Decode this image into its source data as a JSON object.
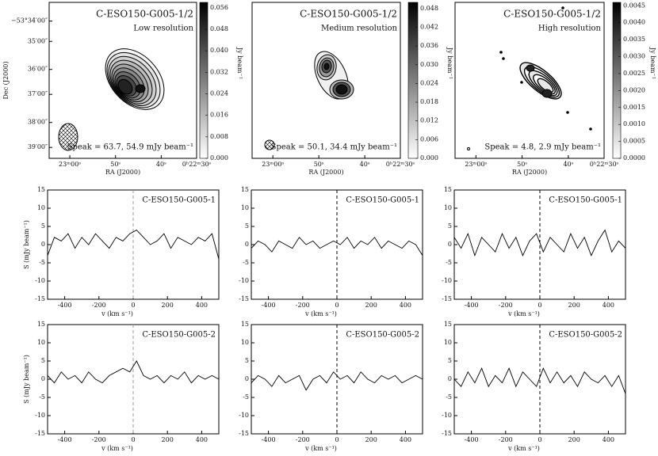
{
  "chart_data": [
    {
      "type": "image",
      "title": "C-ESO150-G005-1/2",
      "subtitle": "Low resolution",
      "annotation": "Speak = 63.7, 54.9 mJy beam⁻¹",
      "xlabel": "RA (J2000)",
      "ylabel": "Dec (J2000)",
      "xtick_labels": [
        "23ᵐ00ˢ",
        "50ˢ",
        "40ˢ",
        "0ʰ22ᵐ30ˢ"
      ],
      "ytick_labels": [
        "−53°34′00″",
        "35′00″",
        "36′00″",
        "37′00″",
        "38′00″",
        "39′00″"
      ],
      "colorbar_label": "Jy beam⁻¹",
      "clim": [
        0,
        0.058
      ],
      "cticks": [
        {
          "value": 0,
          "label": "0.000"
        },
        {
          "value": 0.008,
          "label": "0.008"
        },
        {
          "value": 0.016,
          "label": "0.016"
        },
        {
          "value": 0.024,
          "label": "0.024"
        },
        {
          "value": 0.032,
          "label": "0.032"
        },
        {
          "value": 0.04,
          "label": "0.040"
        },
        {
          "value": 0.048,
          "label": "0.048"
        },
        {
          "value": 0.056,
          "label": "0.056"
        }
      ]
    },
    {
      "type": "image",
      "title": "C-ESO150-G005-1/2",
      "subtitle": "Medium resolution",
      "annotation": "Speak = 50.1, 34.4 mJy beam⁻¹",
      "xlabel": "RA (J2000)",
      "xtick_labels": [
        "23ᵐ00ˢ",
        "50ˢ",
        "40ˢ",
        "0ʰ22ᵐ30ˢ"
      ],
      "colorbar_label": "Jy beam⁻¹",
      "clim": [
        0,
        0.05
      ],
      "cticks": [
        {
          "value": 0,
          "label": "0.000"
        },
        {
          "value": 0.006,
          "label": "0.006"
        },
        {
          "value": 0.012,
          "label": "0.012"
        },
        {
          "value": 0.018,
          "label": "0.018"
        },
        {
          "value": 0.024,
          "label": "0.024"
        },
        {
          "value": 0.03,
          "label": "0.030"
        },
        {
          "value": 0.036,
          "label": "0.036"
        },
        {
          "value": 0.042,
          "label": "0.042"
        },
        {
          "value": 0.048,
          "label": "0.048"
        }
      ]
    },
    {
      "type": "image",
      "title": "C-ESO150-G005-1/2",
      "subtitle": "High resolution",
      "annotation": "Speak = 4.8, 2.9 mJy beam⁻¹",
      "xlabel": "RA (J2000)",
      "xtick_labels": [
        "23ᵐ00ˢ",
        "50ˢ",
        "40ˢ",
        "0ʰ22ᵐ30ˢ"
      ],
      "colorbar_label": "Jy beam⁻¹",
      "clim": [
        0,
        0.0046
      ],
      "cticks": [
        {
          "value": 0,
          "label": "0.0000"
        },
        {
          "value": 0.0005,
          "label": "0.0005"
        },
        {
          "value": 0.001,
          "label": "0.0010"
        },
        {
          "value": 0.0015,
          "label": "0.0015"
        },
        {
          "value": 0.002,
          "label": "0.0020"
        },
        {
          "value": 0.0025,
          "label": "0.0025"
        },
        {
          "value": 0.003,
          "label": "0.0030"
        },
        {
          "value": 0.0035,
          "label": "0.0035"
        },
        {
          "value": 0.004,
          "label": "0.0040"
        },
        {
          "value": 0.0045,
          "label": "0.0045"
        }
      ]
    },
    {
      "type": "line",
      "title": "C-ESO150-G005-1",
      "xlabel": "v (km s⁻¹)",
      "ylabel": "S (mJy beam⁻¹)",
      "x": [
        -500,
        -460,
        -420,
        -380,
        -340,
        -300,
        -260,
        -220,
        -180,
        -140,
        -100,
        -60,
        -20,
        20,
        60,
        100,
        140,
        180,
        220,
        260,
        300,
        340,
        380,
        420,
        460,
        500
      ],
      "values": [
        -3,
        2,
        1,
        3,
        -1,
        2,
        0,
        3,
        1,
        -1,
        2,
        1,
        3,
        4,
        2,
        0,
        1,
        3,
        -1,
        2,
        1,
        0,
        2,
        1,
        3,
        -4
      ],
      "xlim": [
        -500,
        500
      ],
      "ylim": [
        -15,
        15
      ],
      "xticks": [
        -400,
        -200,
        0,
        200,
        400
      ],
      "yticks": [
        -15,
        -10,
        -5,
        0,
        5,
        10,
        15
      ],
      "vline": 0,
      "vline_color": "#999999",
      "color": "#000000"
    },
    {
      "type": "line",
      "title": "C-ESO150-G005-1",
      "xlabel": "v (km s⁻¹)",
      "x": [
        -500,
        -460,
        -420,
        -380,
        -340,
        -300,
        -260,
        -220,
        -180,
        -140,
        -100,
        -60,
        -20,
        20,
        60,
        100,
        140,
        180,
        220,
        260,
        300,
        340,
        380,
        420,
        460,
        500
      ],
      "values": [
        -1,
        1,
        0,
        -2,
        1,
        0,
        -1,
        2,
        0,
        1,
        -1,
        0,
        1,
        0,
        2,
        -1,
        1,
        0,
        2,
        -1,
        1,
        0,
        -1,
        1,
        0,
        -3
      ],
      "xlim": [
        -500,
        500
      ],
      "ylim": [
        -15,
        15
      ],
      "xticks": [
        -400,
        -200,
        0,
        200,
        400
      ],
      "yticks": [
        -15,
        -10,
        -5,
        0,
        5,
        10,
        15
      ],
      "vline": 0,
      "vline_color": "#000000",
      "color": "#000000"
    },
    {
      "type": "line",
      "title": "C-ESO150-G005-1",
      "xlabel": "v (km s⁻¹)",
      "x": [
        -500,
        -460,
        -420,
        -380,
        -340,
        -300,
        -260,
        -220,
        -180,
        -140,
        -100,
        -60,
        -20,
        20,
        60,
        100,
        140,
        180,
        220,
        260,
        300,
        340,
        380,
        420,
        460,
        500
      ],
      "values": [
        2,
        -1,
        3,
        -3,
        2,
        0,
        -2,
        3,
        -1,
        2,
        -3,
        1,
        3,
        -2,
        2,
        0,
        -2,
        3,
        -1,
        2,
        -3,
        1,
        4,
        -2,
        1,
        -1
      ],
      "xlim": [
        -500,
        500
      ],
      "ylim": [
        -15,
        15
      ],
      "xticks": [
        -400,
        -200,
        0,
        200,
        400
      ],
      "yticks": [
        -15,
        -10,
        -5,
        0,
        5,
        10,
        15
      ],
      "vline": 0,
      "vline_color": "#000000",
      "color": "#000000"
    },
    {
      "type": "line",
      "title": "C-ESO150-G005-2",
      "xlabel": "v (km s⁻¹)",
      "ylabel": "S (mJy beam⁻¹)",
      "x": [
        -500,
        -460,
        -420,
        -380,
        -340,
        -300,
        -260,
        -220,
        -180,
        -140,
        -100,
        -60,
        -20,
        20,
        60,
        100,
        140,
        180,
        220,
        260,
        300,
        340,
        380,
        420,
        460,
        500
      ],
      "values": [
        1,
        -1,
        2,
        0,
        1,
        -1,
        2,
        0,
        -1,
        1,
        2,
        3,
        2,
        5,
        1,
        0,
        1,
        -1,
        1,
        0,
        2,
        -1,
        1,
        0,
        1,
        0
      ],
      "xlim": [
        -500,
        500
      ],
      "ylim": [
        -15,
        15
      ],
      "xticks": [
        -400,
        -200,
        0,
        200,
        400
      ],
      "yticks": [
        -15,
        -10,
        -5,
        0,
        5,
        10,
        15
      ],
      "vline": 0,
      "vline_color": "#999999",
      "color": "#000000"
    },
    {
      "type": "line",
      "title": "C-ESO150-G005-2",
      "xlabel": "v (km s⁻¹)",
      "x": [
        -500,
        -460,
        -420,
        -380,
        -340,
        -300,
        -260,
        -220,
        -180,
        -140,
        -100,
        -60,
        -20,
        20,
        60,
        100,
        140,
        180,
        220,
        260,
        300,
        340,
        380,
        420,
        460,
        500
      ],
      "values": [
        -1,
        1,
        0,
        -2,
        1,
        -1,
        0,
        1,
        -3,
        0,
        1,
        -1,
        2,
        0,
        1,
        -1,
        2,
        0,
        -1,
        1,
        0,
        1,
        -1,
        0,
        1,
        0
      ],
      "xlim": [
        -500,
        500
      ],
      "ylim": [
        -15,
        15
      ],
      "xticks": [
        -400,
        -200,
        0,
        200,
        400
      ],
      "yticks": [
        -15,
        -10,
        -5,
        0,
        5,
        10,
        15
      ],
      "vline": 0,
      "vline_color": "#000000",
      "color": "#000000"
    },
    {
      "type": "line",
      "title": "C-ESO150-G005-2",
      "xlabel": "v (km s⁻¹)",
      "x": [
        -500,
        -460,
        -420,
        -380,
        -340,
        -300,
        -260,
        -220,
        -180,
        -140,
        -100,
        -60,
        -20,
        20,
        60,
        100,
        140,
        180,
        220,
        260,
        300,
        340,
        380,
        420,
        460,
        500
      ],
      "values": [
        0,
        -2,
        2,
        -1,
        3,
        -2,
        1,
        -1,
        3,
        -2,
        2,
        0,
        -2,
        3,
        -1,
        2,
        -1,
        1,
        -2,
        2,
        0,
        -1,
        1,
        -2,
        1,
        -4
      ],
      "xlim": [
        -500,
        500
      ],
      "ylim": [
        -15,
        15
      ],
      "xticks": [
        -400,
        -200,
        0,
        200,
        400
      ],
      "yticks": [
        -15,
        -10,
        -5,
        0,
        5,
        10,
        15
      ],
      "vline": 0,
      "vline_color": "#000000",
      "color": "#000000"
    }
  ]
}
